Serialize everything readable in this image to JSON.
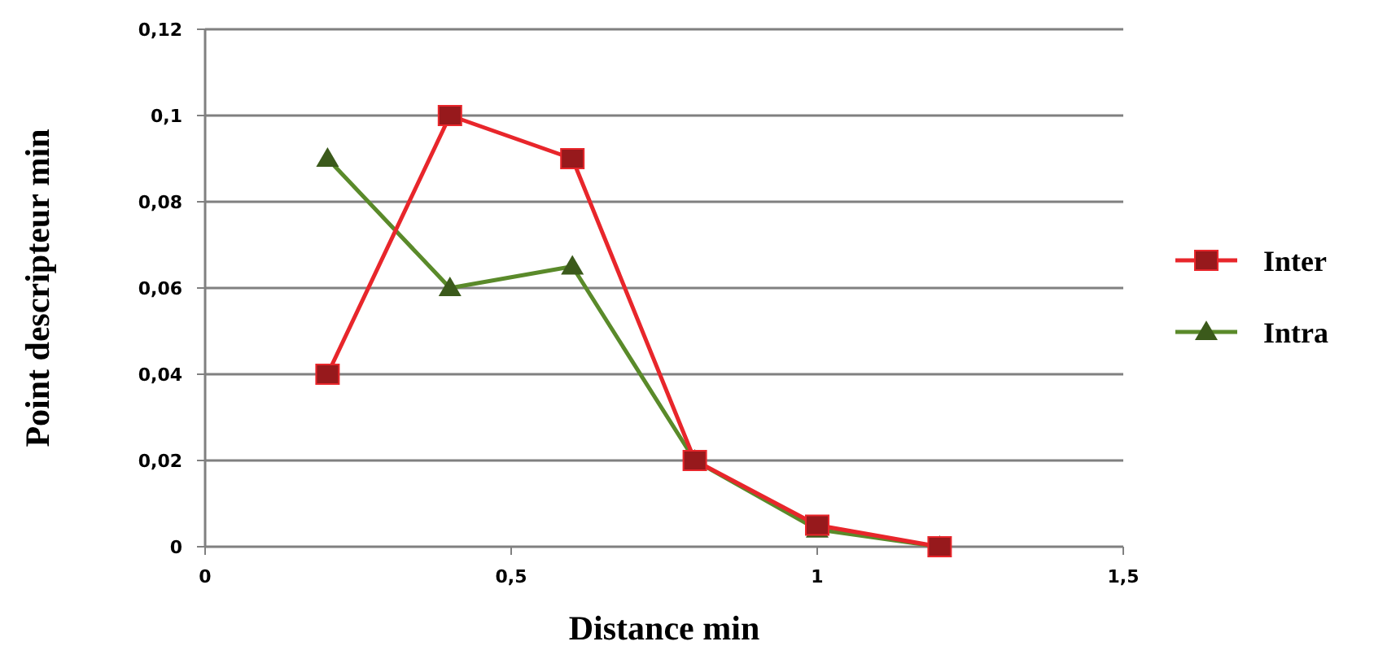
{
  "chart_data": {
    "type": "line",
    "xlabel": "Distance min",
    "ylabel": "Point descripteur min",
    "x": [
      0.2,
      0.4,
      0.6,
      0.8,
      1,
      1.2
    ],
    "series": [
      {
        "name": "Inter",
        "color": "#e8262b",
        "marker": "square",
        "values": [
          0.04,
          0.1,
          0.09,
          0.02,
          0.005,
          0
        ]
      },
      {
        "name": "Intra",
        "color": "#5a8a2a",
        "marker": "triangle",
        "values": [
          0.09,
          0.06,
          0.065,
          0.02,
          0.004,
          0
        ]
      }
    ],
    "xlim": [
      0,
      1.5
    ],
    "xticks": [
      {
        "value": 0,
        "label": "0"
      },
      {
        "value": 0.5,
        "label": "0,5"
      },
      {
        "value": 1,
        "label": "1"
      },
      {
        "value": 1.5,
        "label": "1,5"
      }
    ],
    "ylim": [
      0,
      0.12
    ],
    "yticks": [
      {
        "value": 0,
        "label": "0"
      },
      {
        "value": 0.02,
        "label": "0,02"
      },
      {
        "value": 0.04,
        "label": "0,04"
      },
      {
        "value": 0.06,
        "label": "0,06"
      },
      {
        "value": 0.08,
        "label": "0,08"
      },
      {
        "value": 0.1,
        "label": "0,1"
      },
      {
        "value": 0.12,
        "label": "0,12"
      }
    ],
    "grid": "y",
    "legend": "right",
    "line_style": "solid"
  }
}
